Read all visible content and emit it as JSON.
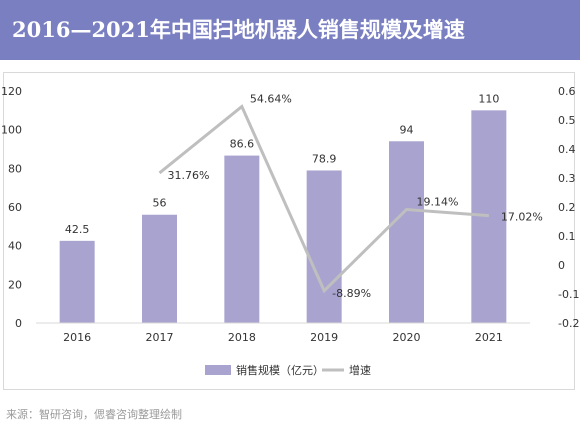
{
  "title": "2016—2021年中国扫地机器人销售规模及增速",
  "source": "来源：智研咨询，偲睿咨询整理绘制",
  "colors": {
    "title_bg": "#7a7fc2",
    "bar": "#a9a3cf",
    "line": "#bfbfbf"
  },
  "chart_data": {
    "type": "bar",
    "categories": [
      "2016",
      "2017",
      "2018",
      "2019",
      "2020",
      "2021"
    ],
    "series": [
      {
        "name": "销售规模（亿元）",
        "type": "bar",
        "axis": "left",
        "values": [
          42.5,
          56,
          86.6,
          78.9,
          94,
          110
        ],
        "labels": [
          "42.5",
          "56",
          "86.6",
          "78.9",
          "94",
          "110"
        ]
      },
      {
        "name": "增速",
        "type": "line",
        "axis": "right",
        "values": [
          null,
          0.3176,
          0.5464,
          -0.0889,
          0.1914,
          0.1702
        ],
        "labels": [
          "",
          "31.76%",
          "54.64%",
          "-8.89%",
          "19.14%",
          "17.02%"
        ]
      }
    ],
    "y_left": {
      "lim": [
        0,
        120
      ],
      "ticks": [
        "0",
        "20",
        "40",
        "60",
        "80",
        "100",
        "120"
      ]
    },
    "y_right": {
      "lim": [
        -0.2,
        0.6
      ],
      "ticks": [
        "-0.2",
        "-0.1",
        "0",
        "0.1",
        "0.2",
        "0.3",
        "0.4",
        "0.5",
        "0.6"
      ]
    },
    "legend_position": "bottom",
    "grid": false
  }
}
